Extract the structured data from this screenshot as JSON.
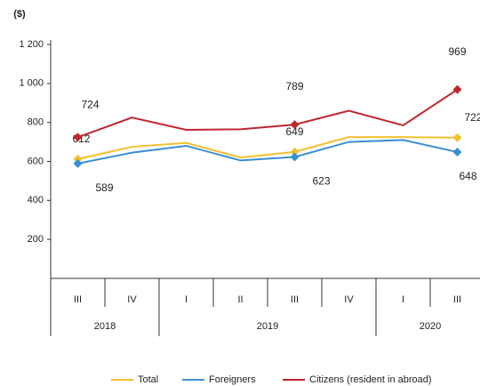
{
  "chart_data": {
    "type": "line",
    "y_label": "($)",
    "categories": [
      "III",
      "IV",
      "I",
      "II",
      "III",
      "IV",
      "I",
      "III"
    ],
    "x_groups": [
      {
        "label": "2018",
        "size": 2
      },
      {
        "label": "2019",
        "size": 4
      },
      {
        "label": "2020",
        "size": 2
      }
    ],
    "series": [
      {
        "name": "Total",
        "color": "#f2c12e",
        "values": [
          612,
          675,
          695,
          620,
          649,
          725,
          725,
          722
        ]
      },
      {
        "name": "Foreigners",
        "color": "#3a8fd0",
        "values": [
          589,
          645,
          680,
          605,
          623,
          700,
          710,
          648
        ]
      },
      {
        "name": "Citizens (resident in abroad)",
        "color": "#c0272d",
        "values": [
          724,
          825,
          762,
          765,
          789,
          860,
          785,
          969
        ]
      }
    ],
    "ylim": [
      0,
      1200
    ],
    "yticks": [
      {
        "value": 200,
        "label": "200"
      },
      {
        "value": 400,
        "label": "400"
      },
      {
        "value": 600,
        "label": "600"
      },
      {
        "value": 800,
        "label": "800"
      },
      {
        "value": 1000,
        "label": "1 000"
      },
      {
        "value": 1200,
        "label": "1 200"
      }
    ]
  }
}
